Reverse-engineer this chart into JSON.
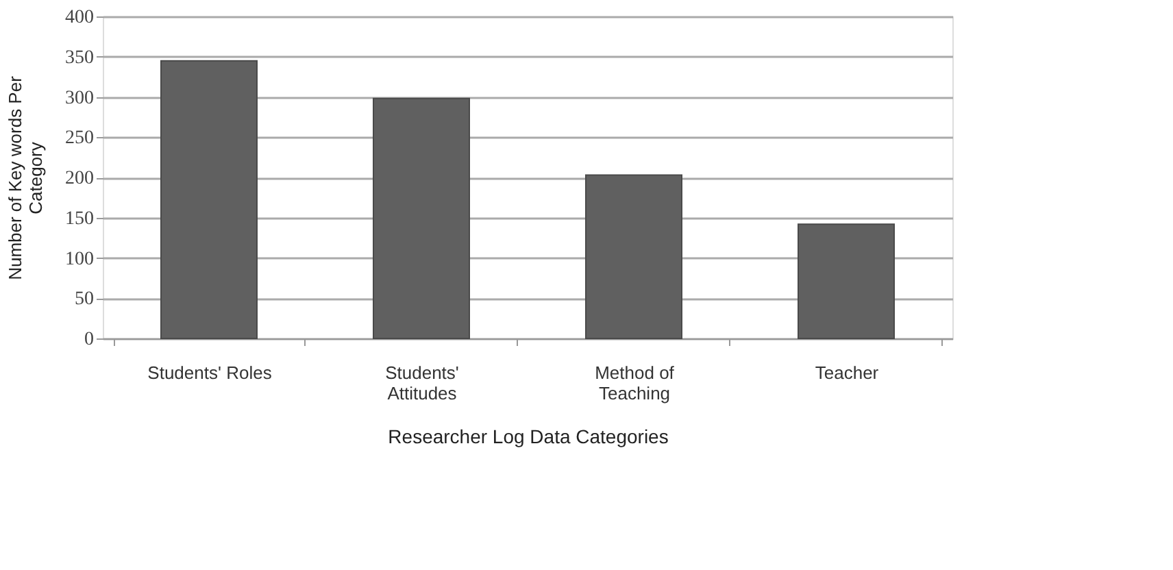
{
  "chart_data": {
    "type": "bar",
    "xlabel": "Researcher Log Data Categories",
    "ylabel": "Number of Key words Per Category",
    "categories": [
      "Students' Roles",
      "Students' Attitudes",
      "Method of Teaching",
      "Teacher"
    ],
    "values": [
      345,
      298,
      203,
      142
    ],
    "color": "#606060",
    "ylim": [
      0,
      400
    ],
    "yticks": [
      0,
      50,
      100,
      150,
      200,
      250,
      300,
      350,
      400
    ],
    "grid": "y"
  }
}
